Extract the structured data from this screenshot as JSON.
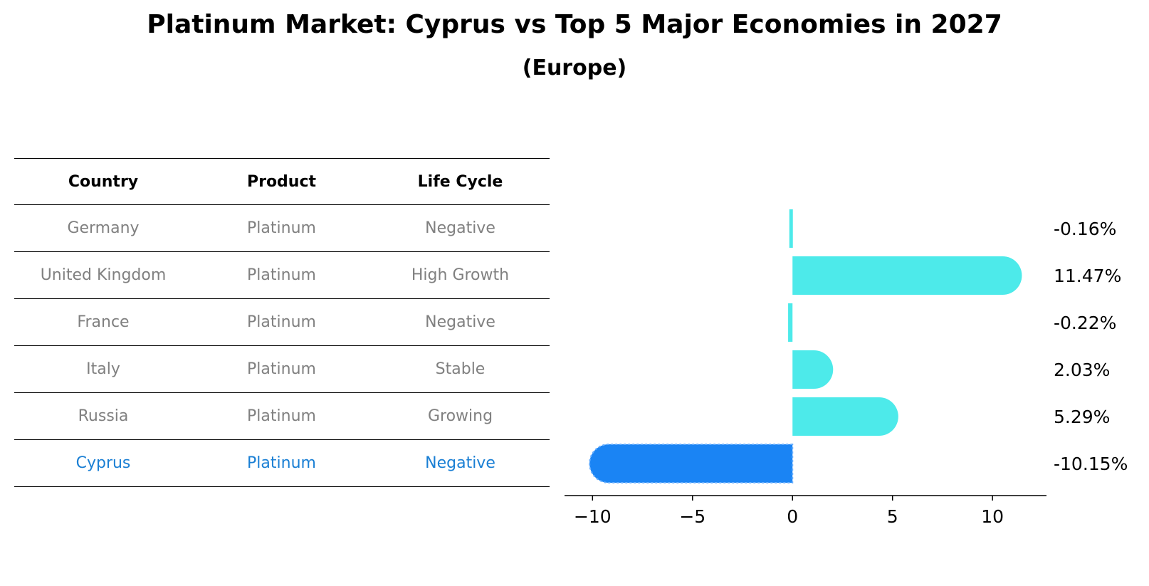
{
  "title": "Platinum Market: Cyprus vs Top 5 Major Economies in 2027",
  "subtitle": "(Europe)",
  "table": {
    "headers": [
      "Country",
      "Product",
      "Life Cycle"
    ],
    "rows": [
      {
        "country": "Germany",
        "product": "Platinum",
        "life_cycle": "Negative"
      },
      {
        "country": "United Kingdom",
        "product": "Platinum",
        "life_cycle": "High Growth"
      },
      {
        "country": "France",
        "product": "Platinum",
        "life_cycle": "Negative"
      },
      {
        "country": "Italy",
        "product": "Platinum",
        "life_cycle": "Stable"
      },
      {
        "country": "Russia",
        "product": "Platinum",
        "life_cycle": "Growing"
      },
      {
        "country": "Cyprus",
        "product": "Platinum",
        "life_cycle": "Negative"
      }
    ],
    "highlight_row": 5,
    "text_color": "#808080",
    "highlight_color": "#1a7fd4"
  },
  "chart_data": {
    "type": "bar",
    "orientation": "horizontal",
    "categories": [
      "Germany",
      "United Kingdom",
      "France",
      "Italy",
      "Russia",
      "Cyprus"
    ],
    "values": [
      -0.16,
      11.47,
      -0.22,
      2.03,
      5.29,
      -10.15
    ],
    "value_labels": [
      "-0.16%",
      "11.47%",
      "-0.22%",
      "2.03%",
      "5.29%",
      "-10.15%"
    ],
    "xticks": [
      -10,
      -5,
      0,
      5,
      10
    ],
    "xtick_labels": [
      "−10",
      "−5",
      "0",
      "5",
      "10"
    ],
    "xlim": [
      -11.4,
      12.7
    ],
    "grid": false,
    "colors": {
      "default": "#4deaea",
      "highlight": "#1a84f4"
    },
    "highlight_index": 5
  }
}
